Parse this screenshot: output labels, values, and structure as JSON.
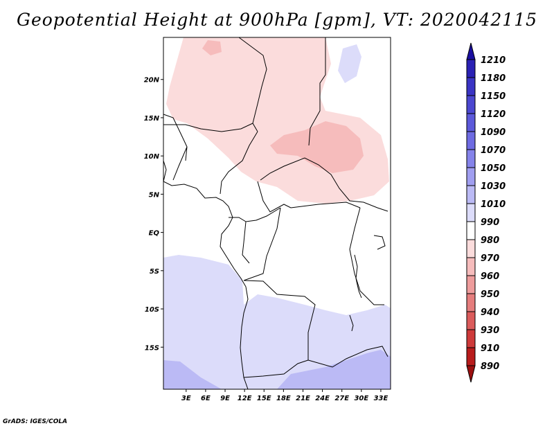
{
  "title": "Geopotential Height at 900hPa [gpm], VT: 2020042115",
  "credit": "GrADS: IGES/COLA",
  "chart_data": {
    "type": "heatmap",
    "variable": "Geopotential Height",
    "level": "900hPa",
    "units": "gpm",
    "valid_time": "2020042115",
    "lon_range": [
      -0.5,
      34.5
    ],
    "lat_range": [
      -20.5,
      25.5
    ],
    "lat_ticks": [
      {
        "value": 20,
        "label": "20N"
      },
      {
        "value": 15,
        "label": "15N"
      },
      {
        "value": 10,
        "label": "10N"
      },
      {
        "value": 5,
        "label": "5N"
      },
      {
        "value": 0,
        "label": "EQ"
      },
      {
        "value": -5,
        "label": "5S"
      },
      {
        "value": -10,
        "label": "10S"
      },
      {
        "value": -15,
        "label": "15S"
      }
    ],
    "lon_ticks": [
      {
        "value": 3,
        "label": "3E"
      },
      {
        "value": 6,
        "label": "6E"
      },
      {
        "value": 9,
        "label": "9E"
      },
      {
        "value": 12,
        "label": "12E"
      },
      {
        "value": 15,
        "label": "15E"
      },
      {
        "value": 18,
        "label": "18E"
      },
      {
        "value": 21,
        "label": "21E"
      },
      {
        "value": 24,
        "label": "24E"
      },
      {
        "value": 27,
        "label": "27E"
      },
      {
        "value": 30,
        "label": "30E"
      },
      {
        "value": 33,
        "label": "33E"
      }
    ],
    "colorbar": {
      "levels": [
        "1210",
        "1180",
        "1150",
        "1120",
        "1090",
        "1070",
        "1050",
        "1030",
        "1010",
        "990",
        "980",
        "970",
        "960",
        "950",
        "940",
        "930",
        "910",
        "890"
      ],
      "colors": [
        "#1a0fa0",
        "#2a21b4",
        "#3a34c4",
        "#4b47d0",
        "#5c59da",
        "#6e6be2",
        "#8583ea",
        "#a09ef0",
        "#bbbaf5",
        "#dcdcfa",
        "#ffffff",
        "#fbdcdc",
        "#f6bcbc",
        "#ee9c9c",
        "#e57d7d",
        "#db5b5b",
        "#ce3a3a",
        "#b81c1c",
        "#9c0f0f"
      ]
    },
    "regions": [
      {
        "name": "sahara-sahel-anomaly",
        "level_color": "#fbdcdc"
      },
      {
        "name": "central-african-republic-anomaly",
        "level_color": "#f6bcbc"
      },
      {
        "name": "southern-atlantic-high",
        "level_color": "#dcdcfa"
      },
      {
        "name": "southern-africa-high",
        "level_color": "#bbbaf5"
      },
      {
        "name": "northeast-blob",
        "level_color": "#dcdcfa"
      }
    ]
  }
}
